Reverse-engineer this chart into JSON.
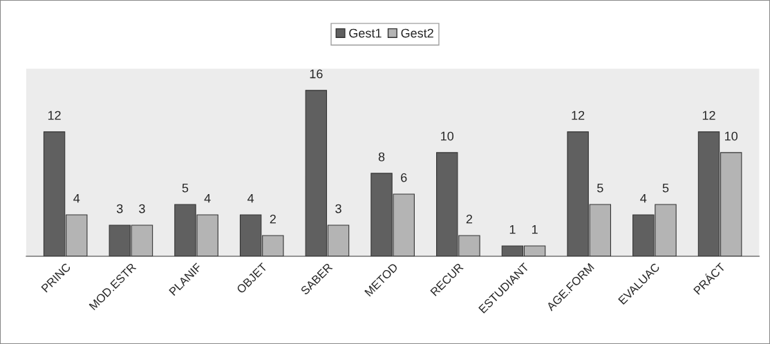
{
  "chart_data": {
    "type": "bar",
    "categories": [
      "PRINC",
      "MOD.ESTR",
      "PLANIF",
      "OBJET",
      "SABER",
      "METOD",
      "RECUR",
      "ESTUDIANT",
      "AGE.FORM",
      "EVALUAC",
      "PRÁCT"
    ],
    "series": [
      {
        "name": "Gest1",
        "color": "#606060",
        "values": [
          12,
          3,
          5,
          4,
          16,
          8,
          10,
          1,
          12,
          4,
          12
        ]
      },
      {
        "name": "Gest2",
        "color": "#b4b4b4",
        "values": [
          4,
          3,
          4,
          2,
          3,
          6,
          2,
          1,
          5,
          5,
          10
        ]
      }
    ],
    "data_labels": true,
    "legend": "top",
    "grid": false
  }
}
